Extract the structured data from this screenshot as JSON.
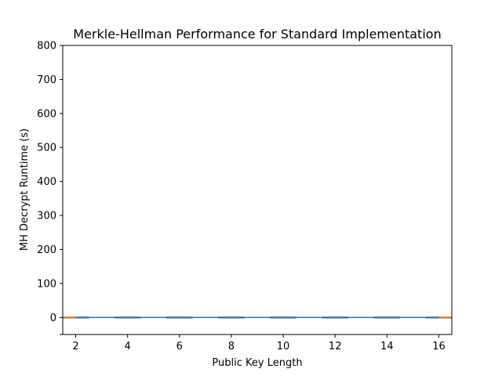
{
  "chart_data": {
    "type": "box",
    "title": "Merkle-Hellman Performance for Standard Implementation",
    "xlabel": "Public Key Length",
    "ylabel": "MH Decrypt Runtime (s)",
    "categories": [
      "2",
      "4",
      "6",
      "8",
      "10",
      "12",
      "14",
      "16"
    ],
    "x": [
      2,
      4,
      6,
      8,
      10,
      12,
      14,
      16
    ],
    "x_ticks": [
      2,
      4,
      6,
      8,
      10,
      12,
      14,
      16
    ],
    "xlim": [
      1.5,
      16.5
    ],
    "ylim": [
      -50,
      800
    ],
    "y_ticks": [
      0,
      100,
      200,
      300,
      400,
      500,
      600,
      700,
      800
    ],
    "grid": false,
    "series": [
      {
        "values": [
          0,
          0,
          0,
          0,
          0,
          0,
          0,
          0
        ],
        "style": "box",
        "color": "#ff7f0e"
      },
      {
        "values": [
          0,
          0,
          0,
          0,
          0,
          0,
          0,
          0
        ],
        "style": "line",
        "color": "#1f77b4"
      }
    ],
    "colors": {
      "box": "#000000",
      "median": "#ff7f0e",
      "line": "#1f77b4"
    }
  }
}
